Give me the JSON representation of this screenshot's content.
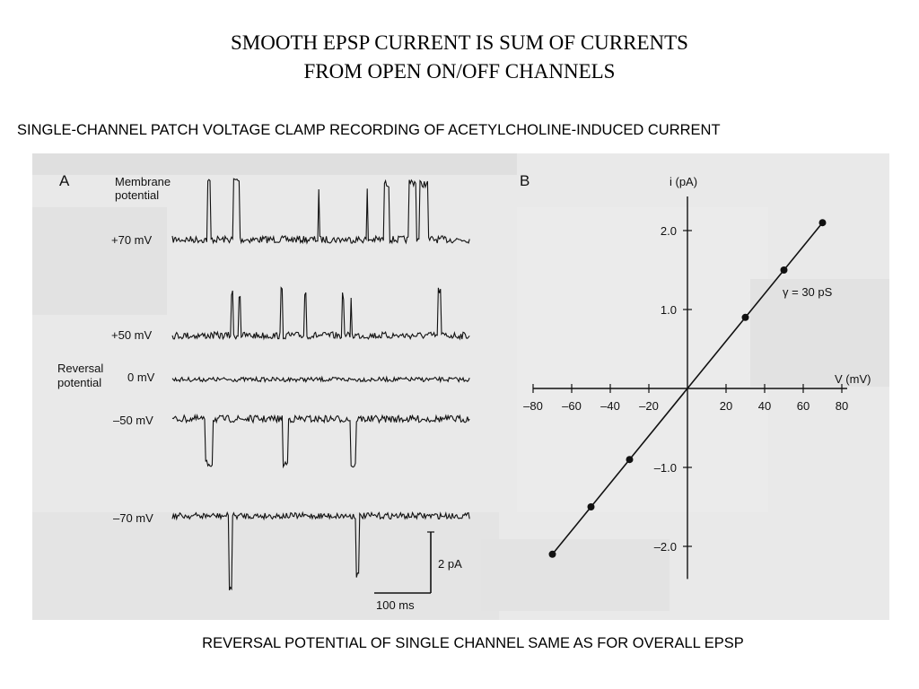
{
  "slide": {
    "title_line1": "SMOOTH EPSP CURRENT IS SUM OF CURRENTS",
    "title_line2": "FROM OPEN ON/OFF CHANNELS",
    "subtitle": "SINGLE-CHANNEL PATCH VOLTAGE CLAMP RECORDING OF ACETYLCHOLINE-INDUCED CURRENT",
    "caption": "REVERSAL POTENTIAL OF SINGLE CHANNEL SAME AS FOR OVERALL EPSP"
  },
  "panel_a": {
    "label": "A",
    "membrane_potential_line1": "Membrane",
    "membrane_potential_line2": "potential",
    "reversal_line1": "Reversal",
    "reversal_line2": "potential",
    "traces": [
      {
        "label": "+70 mV"
      },
      {
        "label": "+50 mV"
      },
      {
        "label": "0 mV"
      },
      {
        "label": "–50 mV"
      },
      {
        "label": "–70 mV"
      }
    ],
    "scale_current": "2 pA",
    "scale_time": "100 ms"
  },
  "panel_b": {
    "label": "B",
    "y_axis_label": "i (pA)",
    "x_axis_label": "V (mV)",
    "conductance_label": "γ = 30 pS"
  },
  "chart_data": {
    "type": "scatter",
    "x": [
      -70,
      -50,
      -30,
      30,
      50,
      70
    ],
    "y": [
      -2.1,
      -1.5,
      -0.9,
      0.9,
      1.5,
      2.1
    ],
    "xlabel": "V (mV)",
    "ylabel": "i (pA)",
    "xlim": [
      -80,
      80
    ],
    "ylim": [
      -2.3,
      2.3
    ],
    "x_ticks": [
      -80,
      -60,
      -40,
      -20,
      20,
      40,
      60,
      80
    ],
    "x_tick_labels": [
      "–80",
      "–60",
      "–40",
      "–20",
      "20",
      "40",
      "60",
      "80"
    ],
    "y_ticks": [
      -2.0,
      -1.0,
      1.0,
      2.0
    ],
    "y_tick_labels": [
      "–2.0",
      "–1.0",
      "1.0",
      "2.0"
    ],
    "fit_line": {
      "slope": 0.03,
      "intercept": 0
    }
  }
}
